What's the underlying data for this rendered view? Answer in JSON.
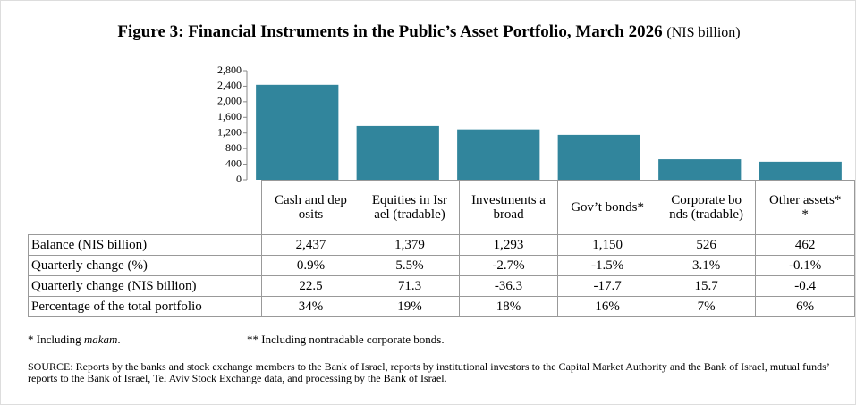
{
  "chart_data": {
    "type": "bar",
    "title": "Figure 3: Financial Instruments in the Public’s Asset Portfolio, March 2026",
    "unit": "(NIS billion)",
    "categories": [
      "Cash and deposits",
      "Equities in Israel (tradable)",
      "Investments abroad",
      "Gov’t bonds*",
      "Corporate bonds (tradable)",
      "Other assets**"
    ],
    "values": [
      2437,
      1379,
      1293,
      1150,
      526,
      462
    ],
    "value_labels": [
      "2,437",
      "1,379",
      "1,293",
      "1,150",
      "526",
      "462"
    ],
    "color": "#31859c",
    "ylim": [
      0,
      2800
    ],
    "yticks": [
      0,
      400,
      800,
      {
        "value": 1200,
        "label": "1,200"
      },
      {
        "value": 1600,
        "label": "1,600"
      },
      {
        "value": 2000,
        "label": "2,000"
      },
      {
        "value": 2400,
        "label": "2,400"
      },
      {
        "value": 2800,
        "label": "2,800"
      }
    ],
    "grid": false
  },
  "table": {
    "rows": [
      {
        "label": "Balance (NIS billion)"
      },
      {
        "label": "Quarterly change (%)",
        "cells": [
          "0.9%",
          "5.5%",
          "-2.7%",
          "-1.5%",
          "3.1%",
          "-0.1%"
        ]
      },
      {
        "label": "Quarterly change (NIS billion)",
        "cells": [
          "22.5",
          "71.3",
          "-36.3",
          "-17.7",
          "15.7",
          "-0.4"
        ]
      },
      {
        "label": "Percentage of the total portfolio",
        "cells": [
          "34%",
          "19%",
          "18%",
          "16%",
          "7%",
          "6%"
        ]
      }
    ]
  },
  "notes": {
    "first": [
      "* Including ",
      "makam",
      "."
    ],
    "second": "** Including nontradable corporate bonds.",
    "source": "SOURCE: Reports by the banks and stock exchange members to the Bank of Israel, reports by institutional investors to the Capital Market Authority and the Bank of Israel, mutual funds’ reports to the Bank of Israel, Tel Aviv Stock Exchange data, and processing by the Bank of Israel."
  }
}
